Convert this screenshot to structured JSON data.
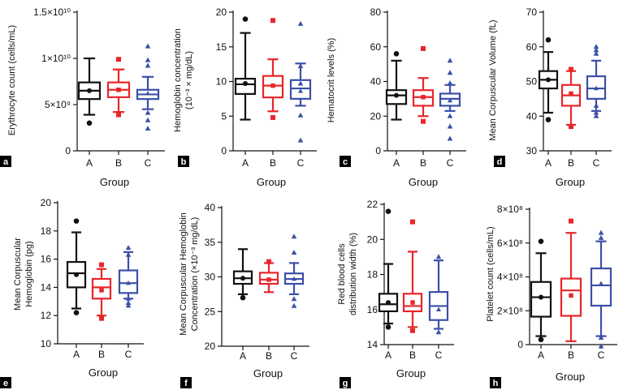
{
  "colors": {
    "A": "#111111",
    "B": "#e8262a",
    "C": "#3b4fa8",
    "letter_bg": "#1a1a1a"
  },
  "chart_data": [
    {
      "panel": "a",
      "type": "box",
      "ylabel": "Erythrocyte count (cells/mL)",
      "xlabel": "Group",
      "categories": [
        "A",
        "B",
        "C"
      ],
      "ylim": [
        0,
        15000000000.0
      ],
      "yticks": [
        {
          "v": 0,
          "label": "0"
        },
        {
          "v": 5000000000.0,
          "label": "5×10⁹"
        },
        {
          "v": 10000000000.0,
          "label": "1×10¹⁰"
        },
        {
          "v": 15000000000.0,
          "label": "1.5×10¹⁰"
        }
      ],
      "series": [
        {
          "group": "A",
          "marker": "circle",
          "whisker_low": 3900000000.0,
          "q1": 5600000000.0,
          "median": 6500000000.0,
          "q3": 7400000000.0,
          "whisker_high": 10000000000.0,
          "mean": 6500000000.0,
          "outliers": [
            3000000000.0
          ]
        },
        {
          "group": "B",
          "marker": "square",
          "whisker_low": 4200000000.0,
          "q1": 5800000000.0,
          "median": 6600000000.0,
          "q3": 7400000000.0,
          "whisker_high": 8800000000.0,
          "mean": 6600000000.0,
          "outliers": [
            9900000000.0,
            3900000000.0
          ]
        },
        {
          "group": "C",
          "marker": "triangle",
          "whisker_low": 4500000000.0,
          "q1": 5600000000.0,
          "median": 6100000000.0,
          "q3": 6600000000.0,
          "whisker_high": 8000000000.0,
          "mean": 6200000000.0,
          "outliers": [
            11300000000.0,
            9800000000.0,
            9200000000.0,
            4100000000.0,
            3300000000.0,
            2400000000.0
          ]
        }
      ]
    },
    {
      "panel": "b",
      "type": "box",
      "ylabel": "Hemoglobin concentration",
      "ylabel2": "(10⁻³ × mg/dL)",
      "xlabel": "Group",
      "categories": [
        "A",
        "B",
        "C"
      ],
      "ylim": [
        0,
        20
      ],
      "yticks": [
        {
          "v": 0,
          "label": "0"
        },
        {
          "v": 5,
          "label": "5"
        },
        {
          "v": 10,
          "label": "10"
        },
        {
          "v": 15,
          "label": "15"
        },
        {
          "v": 20,
          "label": "20"
        }
      ],
      "series": [
        {
          "group": "A",
          "marker": "circle",
          "whisker_low": 4.5,
          "q1": 8.2,
          "median": 9.6,
          "q3": 10.4,
          "whisker_high": 17.0,
          "mean": 9.7,
          "outliers": [
            19.0
          ]
        },
        {
          "group": "B",
          "marker": "square",
          "whisker_low": 5.7,
          "q1": 7.7,
          "median": 9.4,
          "q3": 10.8,
          "whisker_high": 13.2,
          "mean": 9.4,
          "outliers": [
            18.8,
            4.8
          ]
        },
        {
          "group": "C",
          "marker": "triangle",
          "whisker_low": 6.5,
          "q1": 7.5,
          "median": 9.0,
          "q3": 10.2,
          "whisker_high": 12.6,
          "mean": 8.6,
          "outliers": [
            18.3,
            12.2,
            9.7,
            5.1,
            1.5
          ]
        }
      ]
    },
    {
      "panel": "c",
      "type": "box",
      "ylabel": "Hematocrit levels (%)",
      "xlabel": "Group",
      "categories": [
        "A",
        "B",
        "C"
      ],
      "ylim": [
        0,
        80
      ],
      "yticks": [
        {
          "v": 0,
          "label": "0"
        },
        {
          "v": 20,
          "label": "20"
        },
        {
          "v": 40,
          "label": "40"
        },
        {
          "v": 60,
          "label": "60"
        },
        {
          "v": 80,
          "label": "80"
        }
      ],
      "series": [
        {
          "group": "A",
          "marker": "circle",
          "whisker_low": 18,
          "q1": 27,
          "median": 32,
          "q3": 35,
          "whisker_high": 52,
          "mean": 32,
          "outliers": [
            56
          ]
        },
        {
          "group": "B",
          "marker": "square",
          "whisker_low": 20,
          "q1": 26,
          "median": 31,
          "q3": 35,
          "whisker_high": 42,
          "mean": 31,
          "outliers": [
            59,
            17
          ]
        },
        {
          "group": "C",
          "marker": "triangle",
          "whisker_low": 23,
          "q1": 26,
          "median": 30,
          "q3": 33,
          "whisker_high": 38,
          "mean": 29,
          "outliers": [
            52,
            45,
            39,
            20,
            14,
            7
          ]
        }
      ]
    },
    {
      "panel": "d",
      "type": "box",
      "ylabel": "Mean Corpuscular Volume (fL)",
      "xlabel": "Group",
      "categories": [
        "A",
        "B",
        "C"
      ],
      "ylim": [
        30,
        70
      ],
      "yticks": [
        {
          "v": 30,
          "label": "30"
        },
        {
          "v": 40,
          "label": "40"
        },
        {
          "v": 50,
          "label": "50"
        },
        {
          "v": 60,
          "label": "60"
        },
        {
          "v": 70,
          "label": "70"
        }
      ],
      "series": [
        {
          "group": "A",
          "marker": "circle",
          "whisker_low": 41,
          "q1": 48,
          "median": 50.5,
          "q3": 53,
          "whisker_high": 58.5,
          "mean": 50.5,
          "outliers": [
            62,
            39
          ]
        },
        {
          "group": "B",
          "marker": "square",
          "whisker_low": 37.5,
          "q1": 43,
          "median": 46,
          "q3": 49,
          "whisker_high": 53,
          "mean": 46.5,
          "outliers": [
            53.5,
            37
          ]
        },
        {
          "group": "C",
          "marker": "triangle",
          "whisker_low": 41.5,
          "q1": 45,
          "median": 48,
          "q3": 51.5,
          "whisker_high": 56,
          "mean": 48,
          "outliers": [
            60,
            59,
            58,
            43,
            41,
            40
          ]
        }
      ]
    },
    {
      "panel": "e",
      "type": "box",
      "ylabel": "Mean Corpuscular",
      "ylabel2": "Hemoglobin (pg)",
      "xlabel": "Group",
      "categories": [
        "A",
        "B",
        "C"
      ],
      "ylim": [
        10,
        20
      ],
      "yticks": [
        {
          "v": 10,
          "label": "10"
        },
        {
          "v": 12,
          "label": "12"
        },
        {
          "v": 14,
          "label": "14"
        },
        {
          "v": 16,
          "label": "16"
        },
        {
          "v": 18,
          "label": "18"
        },
        {
          "v": 20,
          "label": "20"
        }
      ],
      "series": [
        {
          "group": "A",
          "marker": "circle",
          "whisker_low": 12.5,
          "q1": 14.0,
          "median": 15.0,
          "q3": 15.8,
          "whisker_high": 17.9,
          "mean": 14.9,
          "outliers": [
            18.7,
            12.2
          ]
        },
        {
          "group": "B",
          "marker": "square",
          "whisker_low": 12.0,
          "q1": 13.2,
          "median": 14.0,
          "q3": 14.6,
          "whisker_high": 15.3,
          "mean": 13.8,
          "outliers": [
            15.6,
            11.8
          ]
        },
        {
          "group": "C",
          "marker": "triangle",
          "whisker_low": 13.2,
          "q1": 13.6,
          "median": 14.3,
          "q3": 15.2,
          "whisker_high": 16.5,
          "mean": 14.3,
          "outliers": [
            16.8,
            16.3,
            13.2,
            12.9,
            12.7
          ]
        }
      ]
    },
    {
      "panel": "f",
      "type": "box",
      "ylabel": "Mean Corpuscular Hemoglobin",
      "ylabel2": "Concentration (×10⁻³ mg/dL)",
      "xlabel": "Group",
      "categories": [
        "A",
        "B",
        "C"
      ],
      "ylim": [
        20,
        40
      ],
      "yticks": [
        {
          "v": 20,
          "label": "20"
        },
        {
          "v": 25,
          "label": "25"
        },
        {
          "v": 30,
          "label": "30"
        },
        {
          "v": 35,
          "label": "35"
        },
        {
          "v": 40,
          "label": "40"
        }
      ],
      "series": [
        {
          "group": "A",
          "marker": "circle",
          "whisker_low": 27.5,
          "q1": 29.0,
          "median": 29.8,
          "q3": 30.8,
          "whisker_high": 34.0,
          "mean": 29.8,
          "outliers": [
            27.0
          ]
        },
        {
          "group": "B",
          "marker": "square",
          "whisker_low": 27.8,
          "q1": 29.0,
          "median": 29.6,
          "q3": 30.6,
          "whisker_high": 32.0,
          "mean": 29.6,
          "outliers": [
            32.2
          ]
        },
        {
          "group": "C",
          "marker": "triangle",
          "whisker_low": 27.5,
          "q1": 29.0,
          "median": 29.7,
          "q3": 30.5,
          "whisker_high": 32.0,
          "mean": 29.7,
          "outliers": [
            35.8,
            33.5,
            26.8,
            25.8
          ]
        }
      ]
    },
    {
      "panel": "g",
      "type": "box",
      "ylabel": "Red blood cells",
      "ylabel2": "distribution width (%)",
      "xlabel": "Group",
      "categories": [
        "A",
        "B",
        "C"
      ],
      "ylim": [
        14,
        22
      ],
      "yticks": [
        {
          "v": 14,
          "label": "14"
        },
        {
          "v": 16,
          "label": "16"
        },
        {
          "v": 18,
          "label": "18"
        },
        {
          "v": 20,
          "label": "20"
        },
        {
          "v": 22,
          "label": "22"
        }
      ],
      "series": [
        {
          "group": "A",
          "marker": "circle",
          "whisker_low": 15.2,
          "q1": 15.9,
          "median": 16.3,
          "q3": 16.9,
          "whisker_high": 18.6,
          "mean": 16.4,
          "outliers": [
            21.6,
            15.0
          ]
        },
        {
          "group": "B",
          "marker": "square",
          "whisker_low": 15.0,
          "q1": 15.9,
          "median": 16.2,
          "q3": 16.9,
          "whisker_high": 19.3,
          "mean": 16.4,
          "outliers": [
            21.0,
            14.8
          ]
        },
        {
          "group": "C",
          "marker": "triangle",
          "whisker_low": 14.9,
          "q1": 15.4,
          "median": 16.2,
          "q3": 17.0,
          "whisker_high": 18.8,
          "mean": 16.0,
          "outliers": [
            19.0,
            14.7
          ]
        }
      ]
    },
    {
      "panel": "h",
      "type": "box",
      "ylabel": "Platelet count (cells/mL)",
      "xlabel": "Group",
      "categories": [
        "A",
        "B",
        "C"
      ],
      "ylim": [
        0,
        800000000.0
      ],
      "yticks": [
        {
          "v": 0,
          "label": "0"
        },
        {
          "v": 200000000.0,
          "label": "2×10⁸"
        },
        {
          "v": 400000000.0,
          "label": "4×10⁸"
        },
        {
          "v": 600000000.0,
          "label": "6×10⁸"
        },
        {
          "v": 800000000.0,
          "label": "8×10⁸"
        }
      ],
      "series": [
        {
          "group": "A",
          "marker": "circle",
          "whisker_low": 50000000.0,
          "q1": 165000000.0,
          "median": 280000000.0,
          "q3": 370000000.0,
          "whisker_high": 540000000.0,
          "mean": 280000000.0,
          "outliers": [
            610000000.0,
            30000000.0
          ]
        },
        {
          "group": "B",
          "marker": "square",
          "whisker_low": 20000000.0,
          "q1": 170000000.0,
          "median": 320000000.0,
          "q3": 390000000.0,
          "whisker_high": 660000000.0,
          "mean": 290000000.0,
          "outliers": [
            730000000.0
          ]
        },
        {
          "group": "C",
          "marker": "triangle",
          "whisker_low": 50000000.0,
          "q1": 230000000.0,
          "median": 350000000.0,
          "q3": 450000000.0,
          "whisker_high": 610000000.0,
          "mean": 360000000.0,
          "outliers": [
            660000000.0,
            630000000.0,
            40000000.0,
            -10000000.0
          ]
        }
      ]
    }
  ]
}
